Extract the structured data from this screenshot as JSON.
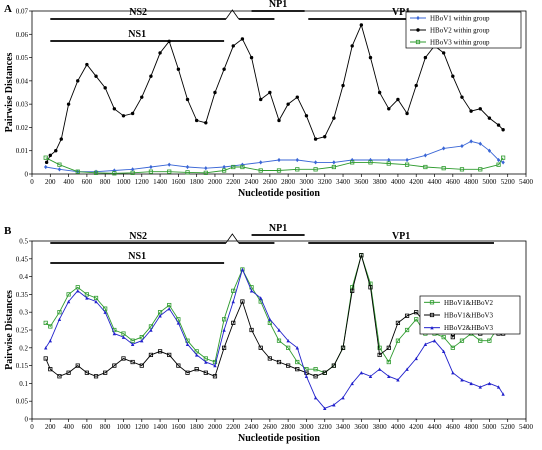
{
  "chart_data": [
    {
      "panel": "A",
      "type": "line",
      "xlabel": "Nucleotide position",
      "ylabel": "Pairwise Distances",
      "xlim": [
        0,
        5400
      ],
      "ylim": [
        0,
        0.07
      ],
      "xticks": [
        0,
        200,
        400,
        600,
        800,
        1000,
        1200,
        1400,
        1600,
        1800,
        2000,
        2200,
        2400,
        2600,
        2800,
        3000,
        3200,
        3400,
        3600,
        3800,
        4000,
        4200,
        4400,
        4600,
        4800,
        5000,
        5200,
        5400
      ],
      "yticks": [
        0,
        0.01,
        0.02,
        0.03,
        0.04,
        0.05,
        0.06,
        0.07
      ],
      "ytick_labels": [
        "0",
        "0.01",
        "0.02",
        "0.03",
        "0.04",
        "0.05",
        "0.06",
        "0.07"
      ],
      "legend_position": "top-right",
      "regions": [
        {
          "label": "NS2",
          "start": 200,
          "end": 2650,
          "gap": [
            2120,
            2260
          ],
          "tier": 1
        },
        {
          "label": "NP1",
          "start": 2400,
          "end": 2980,
          "tier": 2
        },
        {
          "label": "VP1",
          "start": 3020,
          "end": 5050,
          "tier": 1
        },
        {
          "label": "NS1",
          "start": 200,
          "end": 2100,
          "tier": 3
        }
      ],
      "series": [
        {
          "name": "HBoV1 within group",
          "color": "#3a66d6",
          "marker": "diamond",
          "x": [
            150,
            300,
            500,
            700,
            900,
            1100,
            1300,
            1500,
            1700,
            1900,
            2100,
            2300,
            2500,
            2700,
            2900,
            3100,
            3300,
            3500,
            3700,
            3900,
            4100,
            4300,
            4500,
            4700,
            4800,
            4900,
            5000,
            5100,
            5150
          ],
          "y": [
            0.003,
            0.002,
            0.001,
            0.001,
            0.0015,
            0.002,
            0.003,
            0.004,
            0.003,
            0.0025,
            0.003,
            0.004,
            0.005,
            0.006,
            0.006,
            0.005,
            0.005,
            0.006,
            0.006,
            0.006,
            0.006,
            0.008,
            0.011,
            0.012,
            0.014,
            0.013,
            0.01,
            0.006,
            0.005
          ]
        },
        {
          "name": "HBoV2 within group",
          "color": "#000000",
          "marker": "circle",
          "x": [
            160,
            200,
            260,
            320,
            400,
            500,
            600,
            700,
            800,
            900,
            1000,
            1100,
            1200,
            1300,
            1400,
            1500,
            1600,
            1700,
            1800,
            1900,
            2000,
            2100,
            2200,
            2300,
            2400,
            2500,
            2600,
            2700,
            2800,
            2900,
            3000,
            3100,
            3200,
            3300,
            3400,
            3500,
            3600,
            3700,
            3800,
            3900,
            4000,
            4100,
            4200,
            4300,
            4400,
            4500,
            4600,
            4700,
            4800,
            4900,
            5000,
            5100,
            5150
          ],
          "y": [
            0.005,
            0.008,
            0.01,
            0.015,
            0.03,
            0.04,
            0.047,
            0.042,
            0.037,
            0.028,
            0.025,
            0.026,
            0.033,
            0.042,
            0.052,
            0.057,
            0.045,
            0.032,
            0.023,
            0.022,
            0.035,
            0.045,
            0.055,
            0.058,
            0.05,
            0.032,
            0.035,
            0.023,
            0.03,
            0.033,
            0.025,
            0.015,
            0.016,
            0.024,
            0.038,
            0.055,
            0.064,
            0.05,
            0.035,
            0.028,
            0.032,
            0.026,
            0.038,
            0.05,
            0.055,
            0.052,
            0.042,
            0.033,
            0.027,
            0.028,
            0.024,
            0.021,
            0.019
          ]
        },
        {
          "name": "HBoV3 within group",
          "color": "#2e9b2e",
          "marker": "square",
          "x": [
            150,
            300,
            500,
            700,
            900,
            1100,
            1300,
            1500,
            1700,
            1900,
            2100,
            2200,
            2300,
            2500,
            2700,
            2900,
            3100,
            3300,
            3500,
            3700,
            3900,
            4100,
            4300,
            4500,
            4700,
            4900,
            5100,
            5150
          ],
          "y": [
            0.007,
            0.004,
            0.001,
            0.0005,
            0.0003,
            0.0005,
            0.001,
            0.001,
            0.0007,
            0.0005,
            0.0015,
            0.003,
            0.003,
            0.0015,
            0.0015,
            0.002,
            0.002,
            0.003,
            0.005,
            0.005,
            0.0045,
            0.004,
            0.003,
            0.0025,
            0.002,
            0.002,
            0.004,
            0.007
          ]
        }
      ]
    },
    {
      "panel": "B",
      "type": "line",
      "xlabel": "Nucleotide position",
      "ylabel": "Pairwise Distances",
      "xlim": [
        0,
        5400
      ],
      "ylim": [
        0,
        0.5
      ],
      "xticks": [
        0,
        200,
        400,
        600,
        800,
        1000,
        1200,
        1400,
        1600,
        1800,
        2000,
        2200,
        2400,
        2600,
        2800,
        3000,
        3200,
        3400,
        3600,
        3800,
        4000,
        4200,
        4400,
        4600,
        4800,
        5000,
        5200,
        5400
      ],
      "yticks": [
        0,
        0.05,
        0.1,
        0.15,
        0.2,
        0.25,
        0.3,
        0.35,
        0.4,
        0.45,
        0.5
      ],
      "ytick_labels": [
        "0",
        "0.05",
        "0.1",
        "0.15",
        "0.2",
        "0.25",
        "0.3",
        "0.35",
        "0.4",
        "0.45",
        "0.5"
      ],
      "legend_position": "right",
      "regions": [
        {
          "label": "NS2",
          "start": 200,
          "end": 2650,
          "gap": [
            2120,
            2260
          ],
          "tier": 1
        },
        {
          "label": "NP1",
          "start": 2400,
          "end": 2980,
          "tier": 2
        },
        {
          "label": "VP1",
          "start": 3020,
          "end": 5050,
          "tier": 1
        },
        {
          "label": "NS1",
          "start": 200,
          "end": 2100,
          "tier": 3
        }
      ],
      "series": [
        {
          "name": "HBoV1&HBoV2",
          "color": "#2e9b2e",
          "marker": "square",
          "x": [
            150,
            200,
            300,
            400,
            500,
            600,
            700,
            800,
            900,
            1000,
            1100,
            1200,
            1300,
            1400,
            1500,
            1600,
            1700,
            1800,
            1900,
            2000,
            2100,
            2200,
            2300,
            2400,
            2500,
            2600,
            2700,
            2800,
            2900,
            3000,
            3100,
            3200,
            3300,
            3400,
            3500,
            3600,
            3700,
            3800,
            3900,
            4000,
            4100,
            4200,
            4300,
            4400,
            4500,
            4600,
            4700,
            4800,
            4900,
            5000,
            5100,
            5150
          ],
          "y": [
            0.27,
            0.26,
            0.3,
            0.35,
            0.37,
            0.35,
            0.34,
            0.31,
            0.25,
            0.24,
            0.22,
            0.23,
            0.26,
            0.3,
            0.32,
            0.28,
            0.22,
            0.19,
            0.17,
            0.16,
            0.28,
            0.36,
            0.42,
            0.37,
            0.33,
            0.27,
            0.22,
            0.2,
            0.16,
            0.14,
            0.14,
            0.13,
            0.15,
            0.2,
            0.37,
            0.46,
            0.38,
            0.2,
            0.16,
            0.22,
            0.25,
            0.28,
            0.24,
            0.24,
            0.23,
            0.2,
            0.22,
            0.24,
            0.22,
            0.22,
            0.26,
            0.26
          ]
        },
        {
          "name": "HBoV1&HBoV3",
          "color": "#000000",
          "marker": "square",
          "x": [
            150,
            200,
            300,
            400,
            500,
            600,
            700,
            800,
            900,
            1000,
            1100,
            1200,
            1300,
            1400,
            1500,
            1600,
            1700,
            1800,
            1900,
            2000,
            2100,
            2200,
            2300,
            2400,
            2500,
            2600,
            2700,
            2800,
            2900,
            3000,
            3100,
            3200,
            3300,
            3400,
            3500,
            3600,
            3700,
            3800,
            3900,
            4000,
            4100,
            4200,
            4300,
            4400,
            4500,
            4600,
            4700,
            4800,
            4900,
            5000,
            5100,
            5150
          ],
          "y": [
            0.17,
            0.14,
            0.12,
            0.13,
            0.15,
            0.13,
            0.12,
            0.13,
            0.15,
            0.17,
            0.16,
            0.15,
            0.18,
            0.19,
            0.18,
            0.15,
            0.13,
            0.14,
            0.13,
            0.12,
            0.2,
            0.27,
            0.33,
            0.25,
            0.2,
            0.17,
            0.16,
            0.15,
            0.14,
            0.13,
            0.12,
            0.13,
            0.15,
            0.2,
            0.36,
            0.46,
            0.37,
            0.18,
            0.2,
            0.27,
            0.29,
            0.3,
            0.27,
            0.29,
            0.28,
            0.23,
            0.27,
            0.28,
            0.24,
            0.25,
            0.24,
            0.24
          ]
        },
        {
          "name": "HBoV2&HBoV3",
          "color": "#2222cc",
          "marker": "triangle",
          "x": [
            150,
            200,
            300,
            400,
            500,
            600,
            700,
            800,
            900,
            1000,
            1100,
            1200,
            1300,
            1400,
            1500,
            1600,
            1700,
            1800,
            1900,
            2000,
            2100,
            2200,
            2300,
            2400,
            2500,
            2600,
            2700,
            2800,
            2900,
            3000,
            3100,
            3200,
            3300,
            3400,
            3500,
            3600,
            3700,
            3800,
            3900,
            4000,
            4100,
            4200,
            4300,
            4400,
            4500,
            4600,
            4700,
            4800,
            4900,
            5000,
            5100,
            5150
          ],
          "y": [
            0.2,
            0.22,
            0.28,
            0.33,
            0.36,
            0.34,
            0.33,
            0.3,
            0.24,
            0.23,
            0.21,
            0.22,
            0.25,
            0.29,
            0.31,
            0.27,
            0.21,
            0.18,
            0.16,
            0.15,
            0.25,
            0.33,
            0.42,
            0.36,
            0.34,
            0.28,
            0.25,
            0.22,
            0.2,
            0.12,
            0.06,
            0.03,
            0.04,
            0.06,
            0.1,
            0.13,
            0.12,
            0.14,
            0.12,
            0.11,
            0.14,
            0.17,
            0.21,
            0.22,
            0.19,
            0.13,
            0.11,
            0.1,
            0.09,
            0.1,
            0.09,
            0.07
          ]
        }
      ]
    }
  ]
}
